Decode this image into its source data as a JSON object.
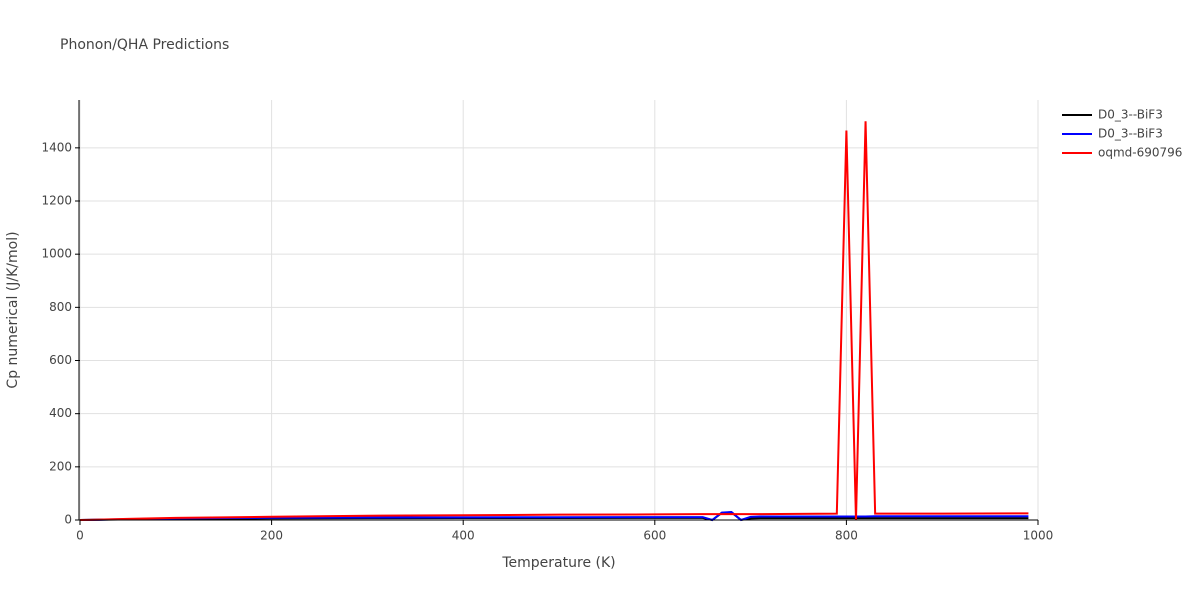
{
  "chart_data": {
    "type": "line",
    "title": "Phonon/QHA Predictions",
    "x_label": "Temperature (K)",
    "y_label": "Cp numerical (J/K/mol)",
    "x": [
      0,
      10,
      20,
      30,
      50,
      75,
      100,
      150,
      200,
      250,
      300,
      400,
      500,
      600,
      650,
      660,
      670,
      680,
      690,
      700,
      710,
      750,
      790,
      800,
      810,
      820,
      830,
      900,
      990
    ],
    "series": [
      {
        "name": "D0_3--BiF3",
        "color": "#000000",
        "values": [
          0,
          0.3,
          1,
          1.5,
          2.5,
          3.5,
          4.5,
          5.5,
          6,
          6.5,
          7,
          7.5,
          7.5,
          8,
          8,
          0,
          27,
          29,
          0,
          6,
          7,
          7,
          7,
          7,
          7,
          7,
          7,
          7,
          7
        ]
      },
      {
        "name": "D0_3--BiF3",
        "color": "#0000ff",
        "values": [
          0,
          0.3,
          1,
          2,
          3,
          4.5,
          6,
          7.5,
          8.5,
          9,
          9.5,
          10,
          10.5,
          11,
          11,
          0,
          28,
          30,
          0,
          12,
          13,
          13,
          13,
          13,
          13,
          13,
          14,
          14,
          14
        ]
      },
      {
        "name": "oqmd-690796",
        "color": "#ff0000",
        "values": [
          0,
          0.5,
          1.5,
          2.5,
          4,
          6,
          8,
          10,
          12,
          14,
          16,
          18,
          20,
          21,
          22,
          22,
          22,
          22,
          22,
          22,
          22,
          23,
          24,
          1465,
          0,
          1500,
          24,
          24,
          25
        ]
      }
    ],
    "xlim": [
      0,
      1000
    ],
    "xticks": [
      0,
      200,
      400,
      600,
      800,
      1000
    ],
    "ylim": [
      0,
      1580
    ],
    "yticks": [
      0,
      200,
      400,
      600,
      800,
      1000,
      1200,
      1400
    ],
    "grid": true,
    "legend": "top-right"
  }
}
